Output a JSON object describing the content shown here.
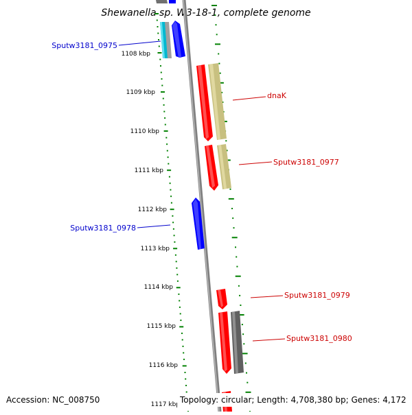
{
  "title": "Shewanella sp. W3-18-1, complete genome",
  "accession": "Accession: NC_008750",
  "topology": "Topology: circular; Length: 4,708,380 bp; Genes: 4,172",
  "colors": {
    "forward_gene": "#ff0000",
    "reverse_gene": "#0000ff",
    "forward_label": "#cc0000",
    "reverse_label": "#0000cc",
    "tick": "#008000",
    "backbone": "#808080",
    "khaki_feature": "#c8c080",
    "gray_feature": "#606060",
    "cyan_feature": "#00c0d0"
  },
  "scale_labels": [
    "1108 kbp",
    "1109 kbp",
    "1110 kbp",
    "1111 kbp",
    "1112 kbp",
    "1113 kbp",
    "1114 kbp",
    "1115 kbp",
    "1116 kbp",
    "1117 kbp"
  ],
  "gene_labels": [
    {
      "text": "Sputw3181_0975",
      "strand": "reverse"
    },
    {
      "text": "dnaK",
      "strand": "forward"
    },
    {
      "text": "Sputw3181_0977",
      "strand": "forward"
    },
    {
      "text": "Sputw3181_0978",
      "strand": "reverse"
    },
    {
      "text": "Sputw3181_0979",
      "strand": "forward"
    },
    {
      "text": "Sputw3181_0980",
      "strand": "forward"
    }
  ]
}
